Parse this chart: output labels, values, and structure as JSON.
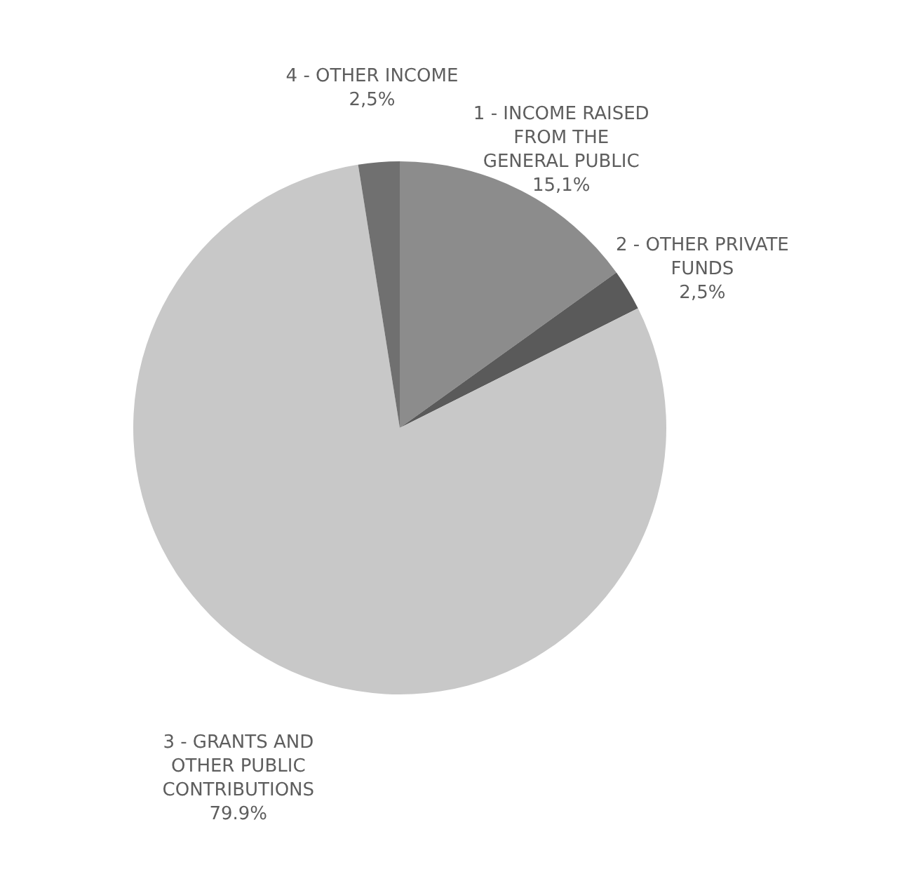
{
  "chart_data": {
    "type": "pie",
    "categories": [
      "1 - INCOME RAISED\nFROM THE\nGENERAL PUBLIC",
      "2 - OTHER PRIVATE\nFUNDS",
      "3 - GRANTS AND\nOTHER PUBLIC\nCONTRIBUTIONS",
      "4 - OTHER INCOME"
    ],
    "values": [
      15.1,
      2.5,
      79.9,
      2.5
    ],
    "value_labels": [
      "15,1%",
      "2,5%",
      "79.9%",
      "2,5%"
    ],
    "colors": [
      "#8c8c8c",
      "#5a5a5a",
      "#c8c8c8",
      "#707070"
    ],
    "legend": false
  }
}
